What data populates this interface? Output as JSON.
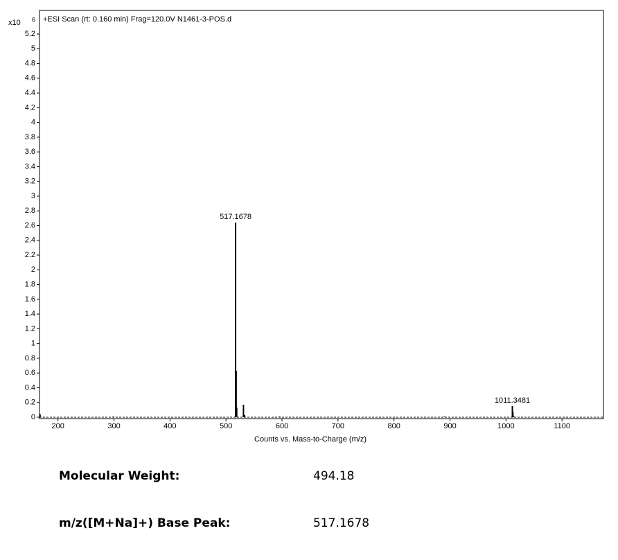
{
  "chart_data": {
    "type": "stick",
    "title": "+ESI Scan (rt: 0.160 min) Frag=120.0V N1461-3-POS.d",
    "x_label": "Counts vs. Mass-to-Charge (m/z)",
    "y_multiplier": "x10",
    "y_exponent": "6",
    "x": [
      168,
      299,
      517.1678,
      518.17,
      519.17,
      531.2,
      533.2,
      596,
      890,
      1011.3481,
      1012.35,
      1013.35
    ],
    "values": [
      0.04,
      0.01,
      2.64,
      0.63,
      0.13,
      0.17,
      0.03,
      0.01,
      0.01,
      0.15,
      0.07,
      0.02
    ],
    "color": "#000000",
    "annotations": [
      {
        "text": "517.1678",
        "x": 517.1678,
        "y": 2.64
      },
      {
        "text": "1011.3481",
        "x": 1011.3481,
        "y": 0.15
      }
    ],
    "xlim": [
      167,
      1174
    ],
    "ylim": [
      0,
      5.52
    ],
    "xticks": [
      200,
      300,
      400,
      500,
      600,
      700,
      800,
      900,
      1000,
      1100
    ],
    "yticks": [
      0,
      0.2,
      0.4,
      0.6,
      0.8,
      1,
      1.2,
      1.4,
      1.6,
      1.8,
      2,
      2.2,
      2.4,
      2.6,
      2.8,
      3,
      3.2,
      3.4,
      3.6,
      3.8,
      4,
      4.2,
      4.4,
      4.6,
      4.8,
      5,
      5.2
    ]
  },
  "details": {
    "rows": [
      [
        "Molecular Weight:",
        "494.18"
      ],
      [
        "m/z([M+Na]+) Base Peak:",
        "517.1678"
      ]
    ]
  }
}
